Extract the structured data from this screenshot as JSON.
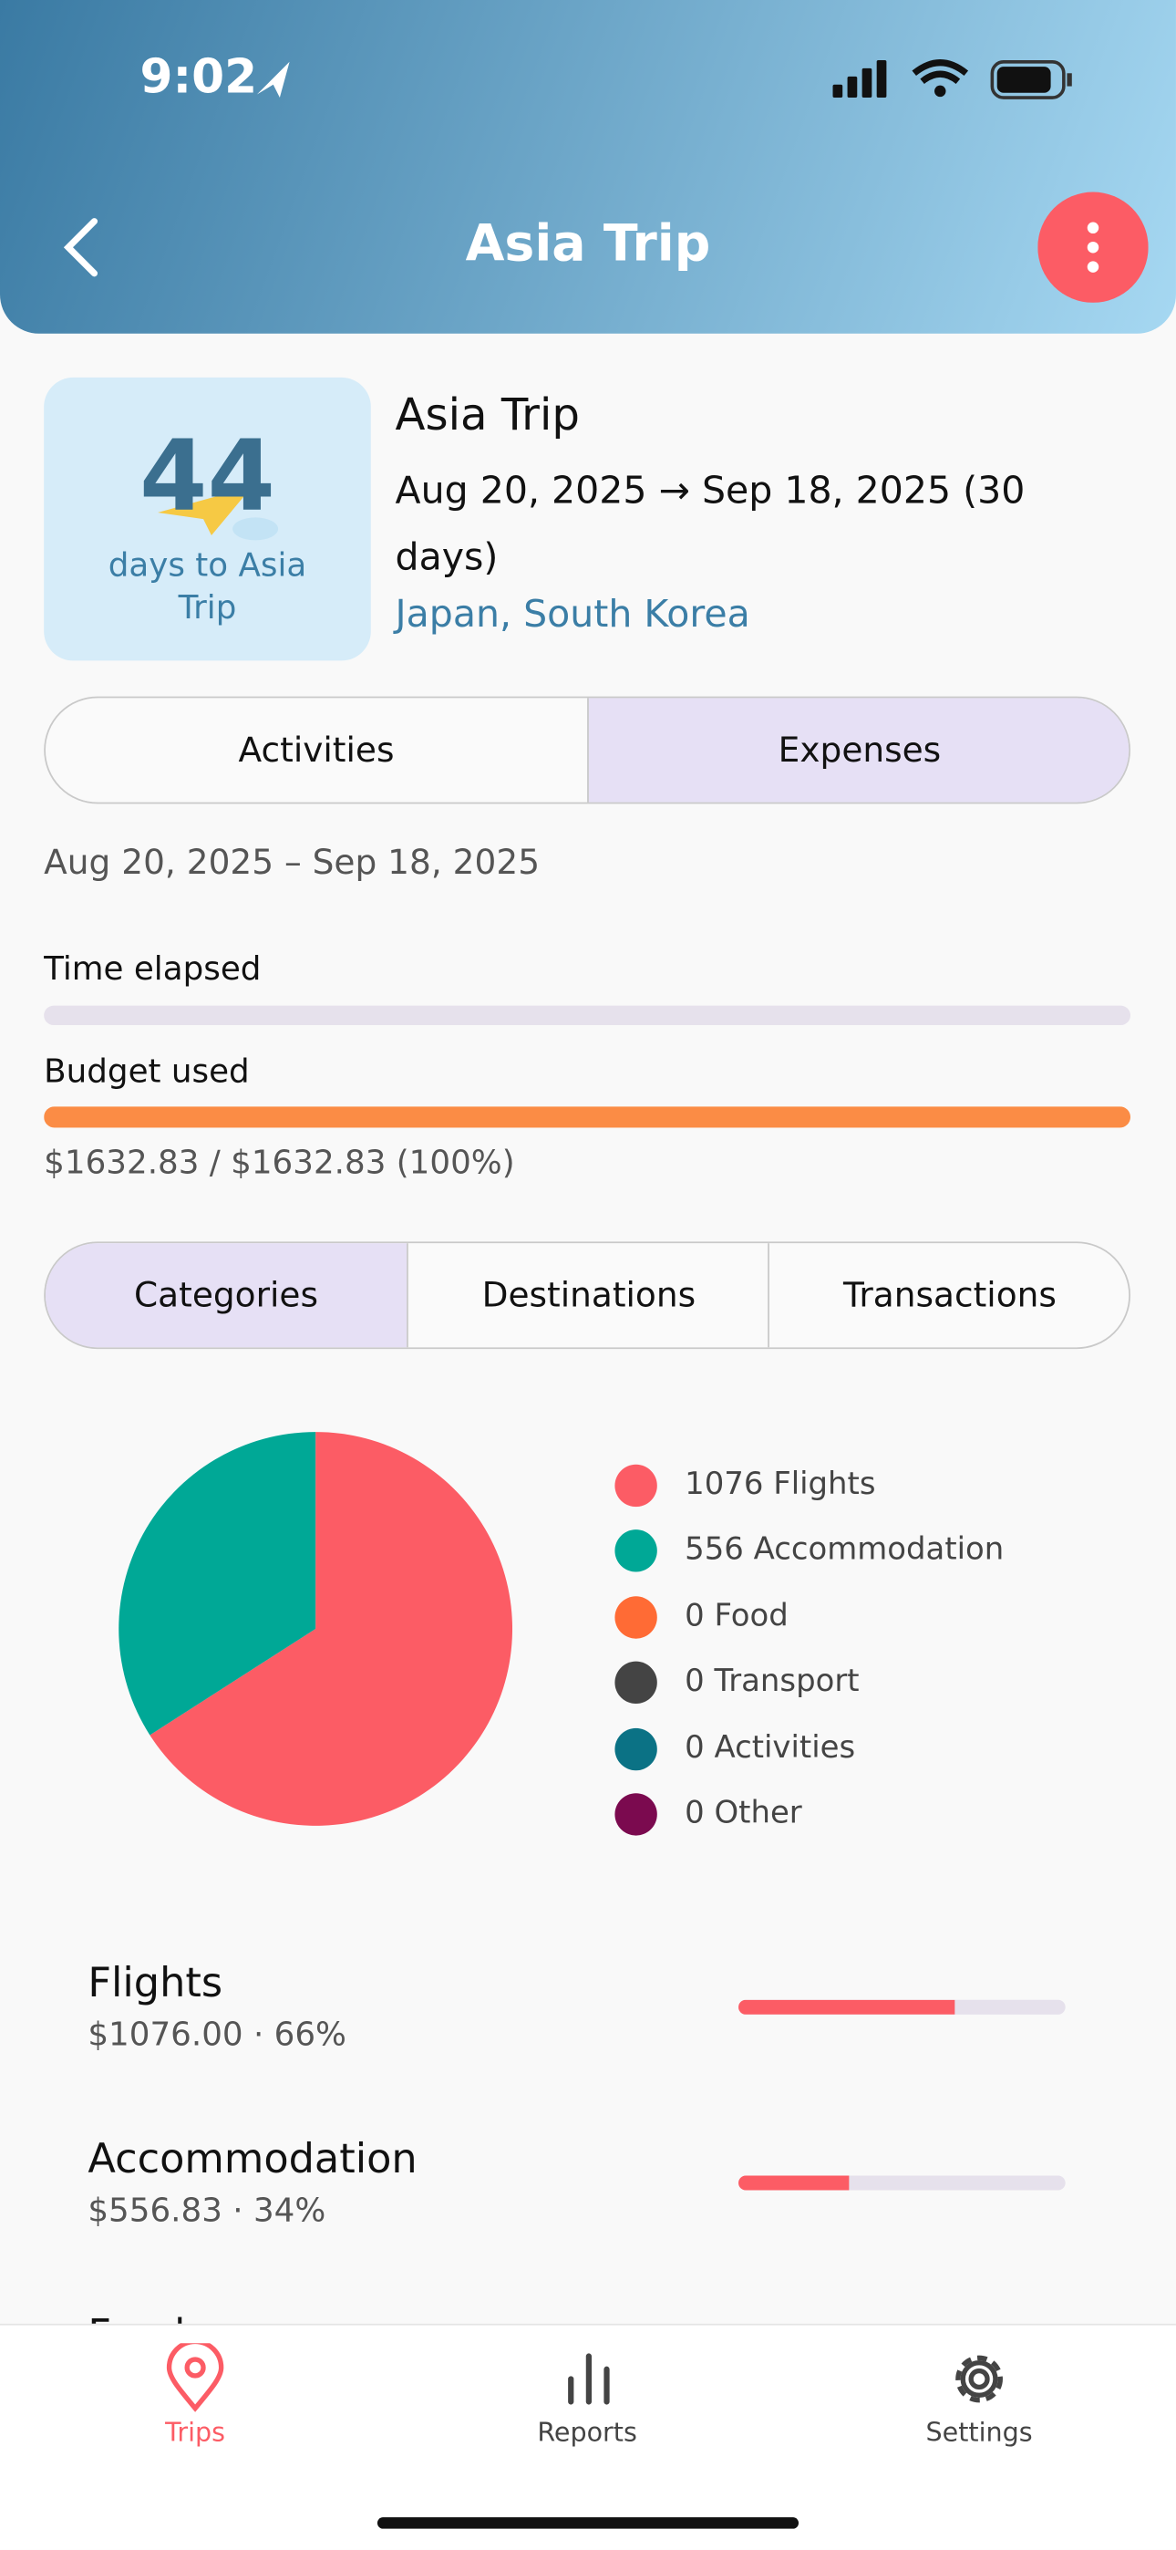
{
  "status_bar": {
    "time": "9:02"
  },
  "header": {
    "title": "Asia Trip"
  },
  "trip_card": {
    "countdown": "44",
    "countdown_caption": "days to Asia Trip",
    "name": "Asia Trip",
    "dates": "Aug 20, 2025 → Sep 18, 2025 (30 days)",
    "destinations": "Japan, South Korea"
  },
  "tabs": [
    "Activities",
    "Expenses"
  ],
  "date_range": "Aug 20, 2025 – Sep 18, 2025",
  "time_elapsed": {
    "label": "Time elapsed",
    "percent": 0
  },
  "budget_used": {
    "label": "Budget used",
    "percent": 100,
    "text": "$1632.83 / $1632.83 (100%)"
  },
  "subtabs": [
    "Categories",
    "Destinations",
    "Transactions"
  ],
  "pie": {
    "type": "pie",
    "slices": [
      {
        "label": "1076 Flights",
        "value": 1076,
        "color": "#fc5c65"
      },
      {
        "label": "556 Accommodation",
        "value": 556,
        "color": "#00a896"
      },
      {
        "label": "0 Food",
        "value": 0,
        "color": "#ff6b35"
      },
      {
        "label": "0 Transport",
        "value": 0,
        "color": "#444444"
      },
      {
        "label": "0 Activities",
        "value": 0,
        "color": "#0b7285"
      },
      {
        "label": "0 Other",
        "value": 0,
        "color": "#7b0a4f"
      }
    ]
  },
  "category_rows": [
    {
      "name": "Flights",
      "detail": "$1076.00 · 66%",
      "percent": 66
    },
    {
      "name": "Accommodation",
      "detail": "$556.83 · 34%",
      "percent": 34
    },
    {
      "name": "Food"
    }
  ],
  "nav": [
    "Trips",
    "Reports",
    "Settings"
  ]
}
